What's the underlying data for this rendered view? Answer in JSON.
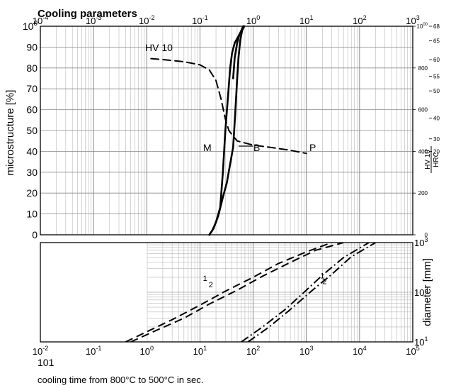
{
  "chart_data": [
    {
      "type": "line",
      "title": "Cooling parameters",
      "ylabel": "microstructure [%]",
      "top_axis": {
        "scale": "log",
        "range": [
          0.0001,
          1000
        ],
        "ticks": [
          "10-4",
          "10-3",
          "10-2",
          "10-1",
          "100",
          "101",
          "102",
          "103"
        ]
      },
      "y_axis": {
        "range": [
          0,
          100
        ],
        "ticks": [
          "0",
          "10",
          "20",
          "30",
          "40",
          "50",
          "60",
          "70",
          "80",
          "90",
          "100"
        ]
      },
      "right_axis": {
        "hv_label": "HV 10",
        "hrc_label": "HRC",
        "hv_ticks": [
          "0",
          "200",
          "400",
          "600",
          "800",
          "1000"
        ],
        "hrc_ticks": [
          "20",
          "30",
          "40",
          "50",
          "55",
          "60",
          "65",
          "68"
        ],
        "hv_range": [
          0,
          1000
        ]
      },
      "grid": true,
      "annotations": {
        "hv_curve": "HV 10",
        "martensite": "M",
        "bainite": "B",
        "pearlite": "P"
      },
      "series": [
        {
          "name": "HV 10",
          "style": "dashed",
          "axis": "HV",
          "x": [
            0.012,
            0.02,
            0.05,
            0.1,
            0.15,
            0.2,
            0.25,
            0.3,
            0.35,
            0.4,
            0.5,
            1,
            2,
            5,
            10
          ],
          "y": [
            845,
            840,
            830,
            815,
            790,
            740,
            650,
            555,
            500,
            480,
            450,
            430,
            420,
            405,
            390
          ]
        },
        {
          "style": "solid",
          "x": [
            0.15,
            0.17,
            0.2,
            0.24,
            0.27,
            0.3,
            0.34,
            0.37,
            0.4,
            0.45,
            0.55,
            0.62,
            0.68
          ],
          "y": [
            0,
            2,
            6,
            13,
            30,
            50,
            68,
            80,
            87,
            92,
            96,
            98,
            100
          ]
        },
        {
          "style": "solid",
          "x": [
            0.15,
            0.18,
            0.22,
            0.27,
            0.32,
            0.37,
            0.42,
            0.46,
            0.5,
            0.53,
            0.57,
            0.62,
            0.66
          ],
          "y": [
            0,
            3,
            9,
            18,
            25,
            34,
            42,
            58,
            75,
            85,
            93,
            98,
            100
          ]
        },
        {
          "style": "solid",
          "x": [
            0.42,
            0.45,
            0.5,
            0.55,
            0.6,
            0.65
          ],
          "y": [
            75,
            85,
            92,
            96,
            98,
            100
          ]
        }
      ]
    },
    {
      "type": "line",
      "xlabel": "cooling time from 800°C to 500°C in sec.",
      "ylabel": "diameter [mm]",
      "x_axis": {
        "scale": "log",
        "range": [
          0.01,
          100000
        ],
        "ticks": [
          "10-2",
          "10-1",
          "100",
          "101",
          "102",
          "103",
          "104",
          "105"
        ]
      },
      "x_axis_note": "101",
      "y_axis": {
        "scale": "log",
        "range": [
          10,
          1000
        ],
        "ticks": [
          "101",
          "102",
          "103"
        ]
      },
      "grid": true,
      "series": [
        {
          "name": "1",
          "style": "dashed",
          "x": [
            0.4,
            1,
            3,
            10,
            30,
            100,
            300,
            1000,
            3000
          ],
          "y": [
            10,
            16,
            28,
            55,
            105,
            200,
            380,
            650,
            1000
          ]
        },
        {
          "name": "2",
          "style": "dashed",
          "x": [
            0.5,
            1.5,
            5,
            15,
            50,
            150,
            500,
            1500,
            5000
          ],
          "y": [
            10,
            17,
            30,
            58,
            110,
            210,
            400,
            700,
            1000
          ]
        },
        {
          "name": "1",
          "style": "dash-dot",
          "x": [
            60,
            150,
            400,
            1000,
            2000,
            5000,
            15000
          ],
          "y": [
            10,
            20,
            45,
            110,
            220,
            500,
            1000
          ]
        },
        {
          "name": "2",
          "style": "dash-dot",
          "x": [
            80,
            200,
            500,
            1300,
            3000,
            7000,
            20000
          ],
          "y": [
            10,
            20,
            45,
            110,
            230,
            520,
            1000
          ]
        }
      ]
    }
  ]
}
